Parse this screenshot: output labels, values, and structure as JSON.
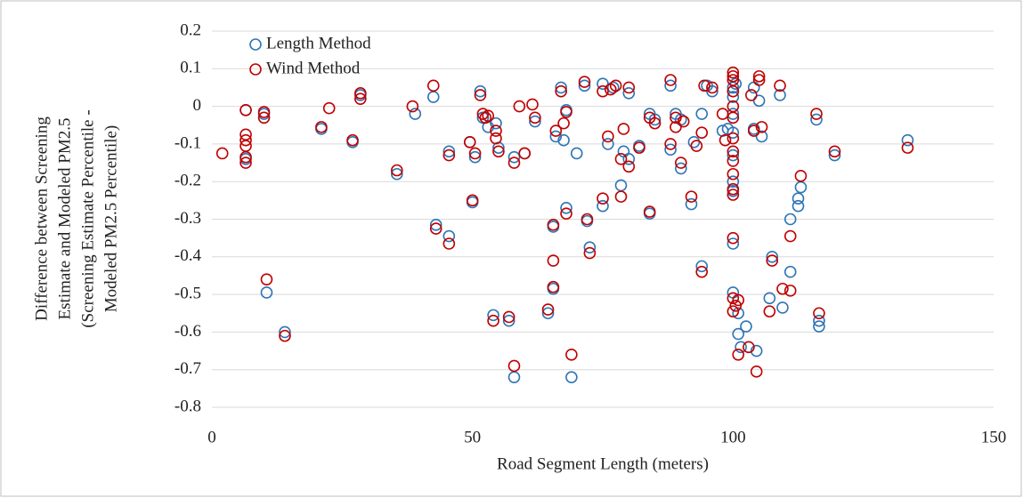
{
  "chart_data": {
    "type": "scatter",
    "x_label": "Road Segment Length (meters)",
    "y_label": [
      "Difference between Screening",
      "Estimate and Modeled PM2.5",
      "(Screening Estimate Percentile -",
      "Modeled PM2.5 Percentile)"
    ],
    "xlim": [
      0,
      150
    ],
    "xticks": [
      0,
      50,
      100,
      150
    ],
    "ylim": [
      -0.8,
      0.2
    ],
    "yticks": [
      0.2,
      0.1,
      0,
      -0.1,
      -0.2,
      -0.3,
      -0.4,
      -0.5,
      -0.6,
      -0.7,
      -0.8
    ],
    "grid": true,
    "legend": "top-left",
    "series": [
      {
        "name": "Length Method",
        "color": "#2e75b6",
        "x": [
          6.5,
          6.5,
          10,
          10.5,
          14,
          21,
          27,
          28.5,
          35.5,
          39,
          42.5,
          43,
          45.5,
          45.5,
          49.5,
          50,
          50.5,
          51.5,
          52,
          53,
          54,
          54.5,
          55,
          57,
          58,
          58,
          60,
          62,
          64.5,
          65.5,
          65.5,
          66,
          67,
          67.5,
          68,
          68,
          69,
          70,
          71.5,
          72,
          72.5,
          75,
          75,
          76,
          77,
          78.5,
          79,
          80,
          80,
          82,
          84,
          84,
          85,
          88,
          88,
          89,
          90,
          90,
          92,
          92.5,
          94,
          94,
          95,
          96,
          98,
          99,
          100,
          100,
          100,
          100,
          100,
          100,
          100,
          100,
          100,
          100.5,
          101,
          101,
          101.5,
          102.5,
          104,
          104,
          104.5,
          105,
          105.5,
          107,
          107.5,
          109,
          109.5,
          111,
          111,
          112.5,
          112.5,
          113,
          116,
          116.5,
          116.5,
          119.5,
          133.5
        ],
        "values": [
          -0.01,
          -0.14,
          -0.02,
          -0.495,
          -0.6,
          -0.06,
          -0.095,
          0.03,
          -0.18,
          -0.02,
          0.025,
          -0.315,
          -0.12,
          -0.345,
          -0.095,
          -0.255,
          -0.135,
          0.04,
          -0.03,
          -0.055,
          -0.555,
          -0.045,
          -0.11,
          -0.57,
          -0.135,
          -0.72,
          -0.125,
          -0.04,
          -0.55,
          -0.32,
          -0.485,
          -0.08,
          0.05,
          -0.09,
          -0.27,
          -0.01,
          -0.72,
          -0.125,
          0.055,
          -0.305,
          -0.375,
          0.06,
          -0.265,
          -0.1,
          0.05,
          -0.21,
          -0.12,
          0.035,
          -0.14,
          -0.105,
          -0.02,
          -0.285,
          -0.035,
          0.055,
          -0.115,
          -0.02,
          -0.165,
          -0.035,
          -0.26,
          -0.095,
          -0.425,
          -0.02,
          0.055,
          0.04,
          -0.065,
          -0.06,
          0.05,
          0.025,
          -0.02,
          -0.07,
          -0.13,
          -0.2,
          -0.225,
          -0.365,
          -0.495,
          0.06,
          -0.55,
          -0.605,
          -0.64,
          -0.585,
          0.05,
          -0.06,
          -0.65,
          0.015,
          -0.08,
          -0.51,
          -0.4,
          0.03,
          -0.535,
          -0.3,
          -0.44,
          -0.245,
          -0.265,
          -0.215,
          -0.035,
          -0.585,
          -0.57,
          -0.13,
          -0.09
        ]
      },
      {
        "name": "Wind Method",
        "color": "#c00000",
        "x": [
          2,
          6.5,
          6.5,
          6.5,
          6.5,
          6.5,
          6.5,
          10,
          10,
          10.5,
          14,
          21,
          22.5,
          27,
          28.5,
          28.5,
          35.5,
          38.5,
          42.5,
          43,
          45.5,
          45.5,
          49.5,
          50,
          50.5,
          51.5,
          52,
          52.5,
          53,
          54,
          54.5,
          54.5,
          55,
          57,
          58,
          58,
          59,
          60,
          61.5,
          62,
          64.5,
          65.5,
          65.5,
          65.5,
          66,
          67,
          67.5,
          68,
          68,
          69,
          71.5,
          72,
          72.5,
          75,
          75,
          76,
          76.5,
          77.5,
          78.5,
          78.5,
          79,
          80,
          80,
          82,
          84,
          84,
          85,
          88,
          88,
          89,
          89,
          90,
          90.5,
          92,
          93,
          94,
          94,
          94.5,
          96,
          98,
          98.5,
          100,
          100,
          100,
          100,
          100,
          100,
          100,
          100,
          100,
          100,
          100,
          100,
          100,
          100,
          100,
          100.5,
          101,
          101,
          103,
          103.5,
          104,
          104.5,
          105,
          105,
          105.5,
          107,
          107.5,
          109,
          109.5,
          111,
          111,
          113,
          116,
          116.5,
          119.5,
          133.5
        ],
        "values": [
          -0.125,
          -0.01,
          -0.075,
          -0.09,
          -0.105,
          -0.135,
          -0.15,
          -0.015,
          -0.03,
          -0.46,
          -0.61,
          -0.055,
          -0.005,
          -0.09,
          0.02,
          0.035,
          -0.17,
          0,
          0.055,
          -0.325,
          -0.13,
          -0.365,
          -0.095,
          -0.25,
          -0.125,
          0.03,
          -0.02,
          -0.03,
          -0.025,
          -0.57,
          -0.065,
          -0.085,
          -0.12,
          -0.56,
          -0.15,
          -0.69,
          0,
          -0.125,
          0.005,
          -0.03,
          -0.54,
          -0.315,
          -0.41,
          -0.48,
          -0.065,
          0.04,
          -0.045,
          -0.285,
          -0.015,
          -0.66,
          0.065,
          -0.3,
          -0.39,
          0.04,
          -0.245,
          -0.08,
          0.045,
          0.055,
          -0.24,
          -0.14,
          -0.06,
          0.05,
          -0.16,
          -0.11,
          -0.03,
          -0.28,
          -0.045,
          0.07,
          -0.1,
          -0.03,
          -0.055,
          -0.15,
          -0.04,
          -0.24,
          -0.105,
          -0.44,
          -0.07,
          0.055,
          0.05,
          -0.02,
          -0.09,
          0.09,
          0.08,
          0.07,
          0.04,
          0,
          -0.03,
          -0.085,
          -0.12,
          -0.145,
          -0.18,
          -0.22,
          -0.235,
          -0.35,
          -0.51,
          -0.545,
          -0.53,
          -0.66,
          -0.515,
          -0.64,
          0.03,
          -0.065,
          -0.705,
          0.08,
          0.07,
          -0.055,
          -0.545,
          -0.41,
          0.055,
          -0.485,
          -0.345,
          -0.49,
          -0.185,
          -0.02,
          -0.55,
          -0.12,
          -0.11
        ]
      }
    ]
  }
}
